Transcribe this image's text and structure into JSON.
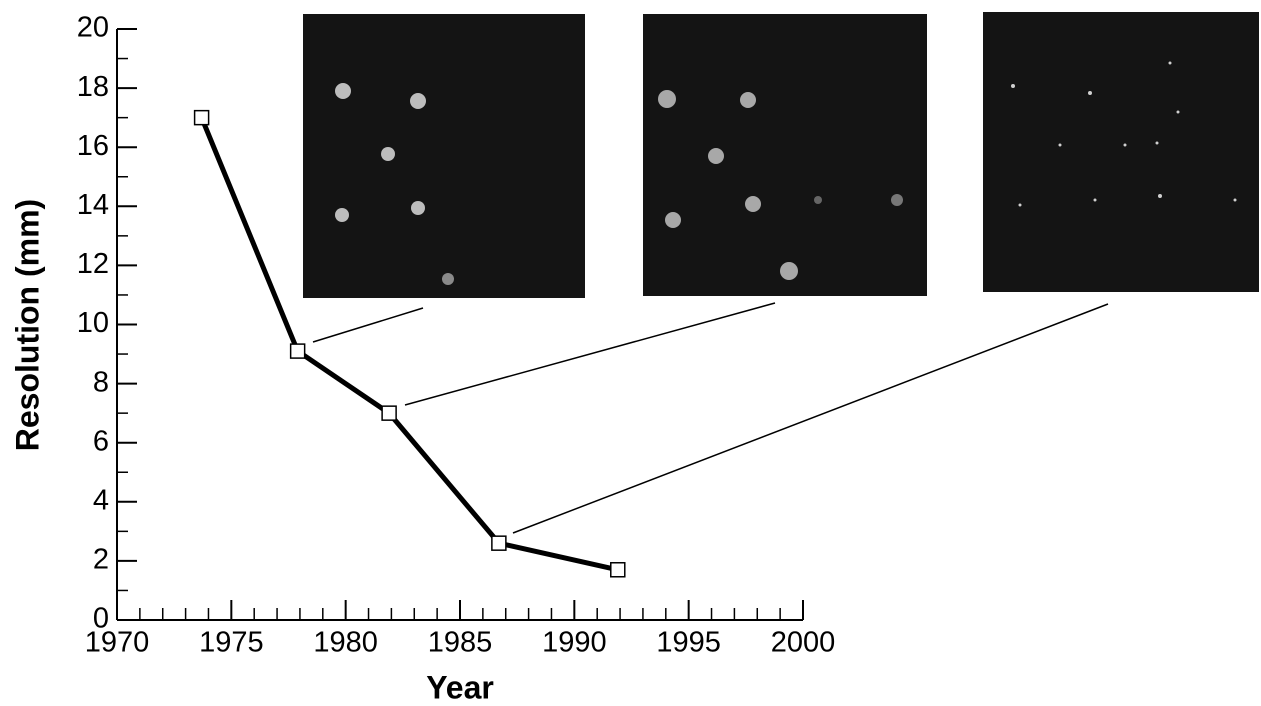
{
  "chart_data": {
    "type": "line",
    "x_label": "Year",
    "y_label": "Resolution  (mm)",
    "x": [
      1973.7,
      1977.9,
      1981.9,
      1986.7,
      1991.9
    ],
    "series": [
      {
        "values": [
          17.0,
          9.1,
          7.0,
          2.6,
          1.7
        ],
        "color": "#000000"
      }
    ],
    "xlim": [
      1970,
      2000
    ],
    "ylim": [
      0,
      20
    ],
    "xticks": [
      1970,
      1975,
      1980,
      1985,
      1990,
      1995,
      2000
    ],
    "yticks": [
      0,
      2,
      4,
      6,
      8,
      10,
      12,
      14,
      16,
      18,
      20
    ],
    "xminorticks": [
      1971,
      1972,
      1973,
      1974,
      1976,
      1977,
      1978,
      1979,
      1981,
      1982,
      1983,
      1984,
      1986,
      1987,
      1988,
      1989,
      1991,
      1992,
      1993,
      1994,
      1996,
      1997,
      1998,
      1999
    ],
    "yminorticks": [
      1,
      3,
      5,
      7,
      9,
      11,
      13,
      15,
      17,
      19
    ],
    "grid": false
  }
}
